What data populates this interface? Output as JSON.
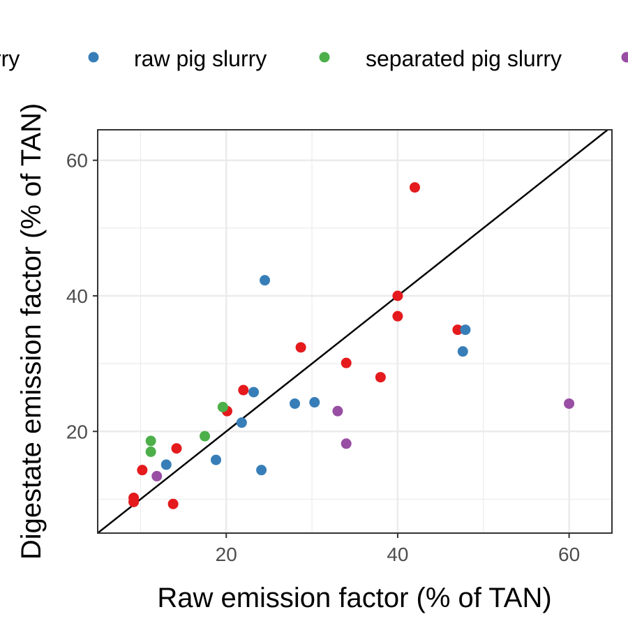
{
  "chart_data": {
    "type": "scatter",
    "xlabel": "Raw emission factor (% of TAN)",
    "ylabel": "Digestate emission factor (% of TAN)",
    "xlim": [
      5,
      65
    ],
    "ylim": [
      5,
      64.5
    ],
    "x_ticks": [
      20,
      40,
      60
    ],
    "y_ticks": [
      20,
      40,
      60
    ],
    "grid": true,
    "legend_position": "top",
    "reference_line": "y = x",
    "legend": [
      {
        "label": "slurry",
        "color": "#e41a1c"
      },
      {
        "label": "raw pig slurry",
        "color": "#377eb8"
      },
      {
        "label": "separated pig slurry",
        "color": "#4daf4a"
      },
      {
        "label": "",
        "color": "#984ea3"
      }
    ],
    "series": [
      {
        "name": "slurry",
        "color": "#e41a1c",
        "points": [
          [
            9.2,
            10.2
          ],
          [
            9.2,
            9.6
          ],
          [
            10.2,
            14.3
          ],
          [
            14.2,
            17.5
          ],
          [
            13.8,
            9.3
          ],
          [
            20.1,
            23.0
          ],
          [
            22.0,
            26.1
          ],
          [
            28.7,
            32.4
          ],
          [
            34.0,
            30.1
          ],
          [
            38.0,
            28.0
          ],
          [
            40.0,
            37.0
          ],
          [
            40.0,
            40.0
          ],
          [
            42.0,
            56.0
          ],
          [
            47.0,
            35.0
          ]
        ]
      },
      {
        "name": "raw pig slurry",
        "color": "#377eb8",
        "points": [
          [
            13.0,
            15.1
          ],
          [
            18.8,
            15.8
          ],
          [
            21.8,
            21.3
          ],
          [
            23.2,
            25.8
          ],
          [
            24.1,
            14.3
          ],
          [
            24.5,
            42.3
          ],
          [
            28.0,
            24.1
          ],
          [
            30.3,
            24.3
          ],
          [
            47.6,
            31.8
          ],
          [
            47.9,
            35.0
          ]
        ]
      },
      {
        "name": "separated pig slurry",
        "color": "#4daf4a",
        "points": [
          [
            11.2,
            18.6
          ],
          [
            11.2,
            17.0
          ],
          [
            17.5,
            19.3
          ],
          [
            19.6,
            23.6
          ]
        ]
      },
      {
        "name": "",
        "color": "#984ea3",
        "points": [
          [
            11.9,
            13.4
          ],
          [
            33.0,
            23.0
          ],
          [
            34.0,
            18.2
          ],
          [
            60.0,
            24.1
          ]
        ]
      }
    ]
  }
}
